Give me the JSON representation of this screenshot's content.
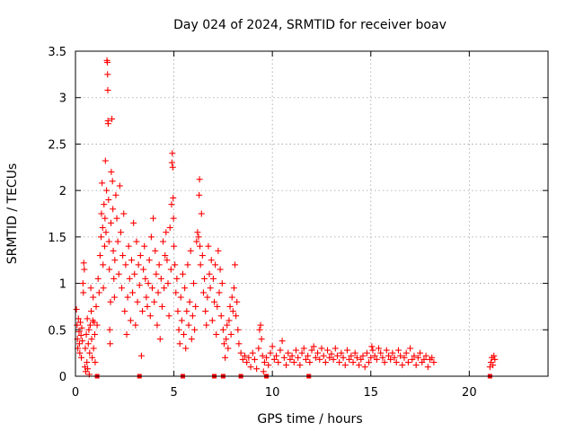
{
  "chart_data": {
    "type": "scatter",
    "title": "Day 024 of 2024, SRMTID for receiver boav",
    "xlabel": "GPS time / hours",
    "ylabel": "SRMTID / TECUs",
    "xlim": [
      0,
      24
    ],
    "ylim": [
      0,
      3.5
    ],
    "xticks": [
      0,
      5,
      10,
      15,
      20
    ],
    "yticks": [
      0,
      0.5,
      1,
      1.5,
      2,
      2.5,
      3,
      3.5
    ],
    "ytick_labels": [
      "0",
      "0.5",
      "1",
      "1.5",
      "2",
      "2.5",
      "3",
      "3.5"
    ],
    "grid": true,
    "marker": "plus",
    "marker_color": "#ff0000",
    "series": [
      {
        "name": "SRMTID",
        "points": [
          [
            0.05,
            0.72
          ],
          [
            0.08,
            0.55
          ],
          [
            0.1,
            0.4
          ],
          [
            0.12,
            0.3
          ],
          [
            0.15,
            0.62
          ],
          [
            0.18,
            0.48
          ],
          [
            0.2,
            0.35
          ],
          [
            0.22,
            0.25
          ],
          [
            0.25,
            0.58
          ],
          [
            0.28,
            0.44
          ],
          [
            0.3,
            0.2
          ],
          [
            0.32,
            0.52
          ],
          [
            0.35,
            0.38
          ],
          [
            0.38,
            1.0
          ],
          [
            0.4,
            0.9
          ],
          [
            0.42,
            1.22
          ],
          [
            0.45,
            1.15
          ],
          [
            0.48,
            0.1
          ],
          [
            0.5,
            0.3
          ],
          [
            0.52,
            0.05
          ],
          [
            0.55,
            0.45
          ],
          [
            0.58,
            0.15
          ],
          [
            0.6,
            0.62
          ],
          [
            0.62,
            0.08
          ],
          [
            0.65,
            0.35
          ],
          [
            0.68,
            0.5
          ],
          [
            0.7,
            0.02
          ],
          [
            0.72,
            0.25
          ],
          [
            0.75,
            0.55
          ],
          [
            0.78,
            0.95
          ],
          [
            0.8,
            0.7
          ],
          [
            0.82,
            0.4
          ],
          [
            0.85,
            0.2
          ],
          [
            0.88,
            0.6
          ],
          [
            0.9,
            0.85
          ],
          [
            0.92,
            0.3
          ],
          [
            0.95,
            0.58
          ],
          [
            0.98,
            0.45
          ],
          [
            1.0,
            0.15
          ],
          [
            1.05,
            0.75
          ],
          [
            1.1,
            0.55
          ],
          [
            1.15,
            1.05
          ],
          [
            1.2,
            0.9
          ],
          [
            1.25,
            1.3
          ],
          [
            1.3,
            1.5
          ],
          [
            1.32,
            1.75
          ],
          [
            1.35,
            2.08
          ],
          [
            1.38,
            1.6
          ],
          [
            1.4,
            1.2
          ],
          [
            1.42,
            0.95
          ],
          [
            1.45,
            1.85
          ],
          [
            1.48,
            1.4
          ],
          [
            1.5,
            1.7
          ],
          [
            1.52,
            2.32
          ],
          [
            1.55,
            1.55
          ],
          [
            1.58,
            2.0
          ],
          [
            1.6,
            3.4
          ],
          [
            1.62,
            3.38
          ],
          [
            1.63,
            3.25
          ],
          [
            1.64,
            3.08
          ],
          [
            1.65,
            2.75
          ],
          [
            1.66,
            2.72
          ],
          [
            1.68,
            1.9
          ],
          [
            1.7,
            1.45
          ],
          [
            1.72,
            1.15
          ],
          [
            1.74,
            0.5
          ],
          [
            1.76,
            0.35
          ],
          [
            1.78,
            0.8
          ],
          [
            1.8,
            1.65
          ],
          [
            1.82,
            2.2
          ],
          [
            1.85,
            2.77
          ],
          [
            1.88,
            2.1
          ],
          [
            1.9,
            1.8
          ],
          [
            1.92,
            1.35
          ],
          [
            1.95,
            1.05
          ],
          [
            1.98,
            0.85
          ],
          [
            2.0,
            1.25
          ],
          [
            2.05,
            1.95
          ],
          [
            2.1,
            1.7
          ],
          [
            2.15,
            1.45
          ],
          [
            2.2,
            1.1
          ],
          [
            2.25,
            2.05
          ],
          [
            2.3,
            1.55
          ],
          [
            2.35,
            0.95
          ],
          [
            2.4,
            1.3
          ],
          [
            2.45,
            1.75
          ],
          [
            2.5,
            0.7
          ],
          [
            2.55,
            1.2
          ],
          [
            2.6,
            0.45
          ],
          [
            2.65,
            0.85
          ],
          [
            2.7,
            1.4
          ],
          [
            2.75,
            1.05
          ],
          [
            2.8,
            0.6
          ],
          [
            2.85,
            1.25
          ],
          [
            2.9,
            0.9
          ],
          [
            2.95,
            1.65
          ],
          [
            3.0,
            1.1
          ],
          [
            3.05,
            0.55
          ],
          [
            3.1,
            1.45
          ],
          [
            3.15,
            0.8
          ],
          [
            3.2,
            1.2
          ],
          [
            3.25,
            0.98
          ],
          [
            3.3,
            1.3
          ],
          [
            3.35,
            0.22
          ],
          [
            3.4,
            0.7
          ],
          [
            3.45,
            1.15
          ],
          [
            3.5,
            1.4
          ],
          [
            3.55,
            1.05
          ],
          [
            3.6,
            0.85
          ],
          [
            3.65,
            0.75
          ],
          [
            3.7,
            1.0
          ],
          [
            3.75,
            1.25
          ],
          [
            3.8,
            0.65
          ],
          [
            3.85,
            1.5
          ],
          [
            3.9,
            0.95
          ],
          [
            3.95,
            1.7
          ],
          [
            4.0,
            0.8
          ],
          [
            4.05,
            1.35
          ],
          [
            4.1,
            1.1
          ],
          [
            4.15,
            0.55
          ],
          [
            4.2,
            0.9
          ],
          [
            4.25,
            1.2
          ],
          [
            4.3,
            0.4
          ],
          [
            4.35,
            1.05
          ],
          [
            4.4,
            0.75
          ],
          [
            4.45,
            1.45
          ],
          [
            4.5,
            0.95
          ],
          [
            4.55,
            1.3
          ],
          [
            4.6,
            1.55
          ],
          [
            4.65,
            1.25
          ],
          [
            4.7,
            1.0
          ],
          [
            4.75,
            0.65
          ],
          [
            4.8,
            1.6
          ],
          [
            4.85,
            1.15
          ],
          [
            4.88,
            1.85
          ],
          [
            4.9,
            2.3
          ],
          [
            4.92,
            2.4
          ],
          [
            4.94,
            2.25
          ],
          [
            4.96,
            1.92
          ],
          [
            4.98,
            1.7
          ],
          [
            5.0,
            1.4
          ],
          [
            5.05,
            1.2
          ],
          [
            5.1,
            0.9
          ],
          [
            5.15,
            1.05
          ],
          [
            5.2,
            0.7
          ],
          [
            5.25,
            0.5
          ],
          [
            5.3,
            0.35
          ],
          [
            5.35,
            0.85
          ],
          [
            5.4,
            0.6
          ],
          [
            5.45,
            1.1
          ],
          [
            5.5,
            0.45
          ],
          [
            5.55,
            0.95
          ],
          [
            5.6,
            0.3
          ],
          [
            5.65,
            0.7
          ],
          [
            5.7,
            1.2
          ],
          [
            5.75,
            0.55
          ],
          [
            5.8,
            0.8
          ],
          [
            5.85,
            1.35
          ],
          [
            5.9,
            0.4
          ],
          [
            5.95,
            0.65
          ],
          [
            6.0,
            1.0
          ],
          [
            6.05,
            0.5
          ],
          [
            6.1,
            0.75
          ],
          [
            6.15,
            1.45
          ],
          [
            6.2,
            1.55
          ],
          [
            6.25,
            1.5
          ],
          [
            6.28,
            1.95
          ],
          [
            6.3,
            2.12
          ],
          [
            6.32,
            1.4
          ],
          [
            6.35,
            1.2
          ],
          [
            6.4,
            1.75
          ],
          [
            6.45,
            1.3
          ],
          [
            6.5,
            0.9
          ],
          [
            6.55,
            1.05
          ],
          [
            6.6,
            0.7
          ],
          [
            6.65,
            0.55
          ],
          [
            6.7,
            0.85
          ],
          [
            6.75,
            1.4
          ],
          [
            6.8,
            1.1
          ],
          [
            6.85,
            0.95
          ],
          [
            6.9,
            1.25
          ],
          [
            6.95,
            0.6
          ],
          [
            7.0,
            1.05
          ],
          [
            7.05,
            0.8
          ],
          [
            7.1,
            1.2
          ],
          [
            7.15,
            0.45
          ],
          [
            7.2,
            0.75
          ],
          [
            7.25,
            1.35
          ],
          [
            7.3,
            0.9
          ],
          [
            7.35,
            1.15
          ],
          [
            7.4,
            0.65
          ],
          [
            7.45,
            1.0
          ],
          [
            7.5,
            0.5
          ],
          [
            7.55,
            0.35
          ],
          [
            7.6,
            0.2
          ],
          [
            7.65,
            0.4
          ],
          [
            7.7,
            0.55
          ],
          [
            7.75,
            0.3
          ],
          [
            7.8,
            0.6
          ],
          [
            7.85,
            0.75
          ],
          [
            7.9,
            0.45
          ],
          [
            7.95,
            0.85
          ],
          [
            8.0,
            0.7
          ],
          [
            8.05,
            0.95
          ],
          [
            8.1,
            1.2
          ],
          [
            8.15,
            0.65
          ],
          [
            8.2,
            0.8
          ],
          [
            8.25,
            0.5
          ],
          [
            8.3,
            0.35
          ],
          [
            8.4,
            0.25
          ],
          [
            8.5,
            0.18
          ],
          [
            8.6,
            0.22
          ],
          [
            8.7,
            0.15
          ],
          [
            8.8,
            0.2
          ],
          [
            8.9,
            0.1
          ],
          [
            9.0,
            0.25
          ],
          [
            9.1,
            0.18
          ],
          [
            9.2,
            0.08
          ],
          [
            9.3,
            0.3
          ],
          [
            9.35,
            0.5
          ],
          [
            9.4,
            0.55
          ],
          [
            9.45,
            0.4
          ],
          [
            9.5,
            0.22
          ],
          [
            9.55,
            0.05
          ],
          [
            9.6,
            0.15
          ],
          [
            9.7,
            0.2
          ],
          [
            9.8,
            0.12
          ],
          [
            9.9,
            0.25
          ],
          [
            10.0,
            0.32
          ],
          [
            10.1,
            0.18
          ],
          [
            10.2,
            0.22
          ],
          [
            10.3,
            0.15
          ],
          [
            10.4,
            0.28
          ],
          [
            10.5,
            0.38
          ],
          [
            10.6,
            0.2
          ],
          [
            10.7,
            0.12
          ],
          [
            10.8,
            0.25
          ],
          [
            10.9,
            0.18
          ],
          [
            11.0,
            0.22
          ],
          [
            11.1,
            0.15
          ],
          [
            11.2,
            0.28
          ],
          [
            11.3,
            0.2
          ],
          [
            11.4,
            0.12
          ],
          [
            11.5,
            0.25
          ],
          [
            11.6,
            0.3
          ],
          [
            11.7,
            0.18
          ],
          [
            11.8,
            0.22
          ],
          [
            11.9,
            0.15
          ],
          [
            12.0,
            0.28
          ],
          [
            12.1,
            0.32
          ],
          [
            12.2,
            0.2
          ],
          [
            12.3,
            0.25
          ],
          [
            12.4,
            0.18
          ],
          [
            12.5,
            0.3
          ],
          [
            12.6,
            0.22
          ],
          [
            12.7,
            0.15
          ],
          [
            12.8,
            0.28
          ],
          [
            12.9,
            0.2
          ],
          [
            13.0,
            0.24
          ],
          [
            13.1,
            0.18
          ],
          [
            13.2,
            0.3
          ],
          [
            13.3,
            0.22
          ],
          [
            13.4,
            0.15
          ],
          [
            13.5,
            0.25
          ],
          [
            13.6,
            0.2
          ],
          [
            13.7,
            0.12
          ],
          [
            13.8,
            0.28
          ],
          [
            13.9,
            0.18
          ],
          [
            14.0,
            0.22
          ],
          [
            14.1,
            0.15
          ],
          [
            14.2,
            0.25
          ],
          [
            14.3,
            0.2
          ],
          [
            14.4,
            0.12
          ],
          [
            14.5,
            0.18
          ],
          [
            14.6,
            0.22
          ],
          [
            14.7,
            0.1
          ],
          [
            14.8,
            0.25
          ],
          [
            14.9,
            0.15
          ],
          [
            15.0,
            0.2
          ],
          [
            15.05,
            0.32
          ],
          [
            15.1,
            0.28
          ],
          [
            15.2,
            0.22
          ],
          [
            15.3,
            0.18
          ],
          [
            15.4,
            0.3
          ],
          [
            15.5,
            0.25
          ],
          [
            15.6,
            0.2
          ],
          [
            15.7,
            0.15
          ],
          [
            15.8,
            0.28
          ],
          [
            15.9,
            0.22
          ],
          [
            16.0,
            0.18
          ],
          [
            16.1,
            0.25
          ],
          [
            16.2,
            0.2
          ],
          [
            16.3,
            0.15
          ],
          [
            16.4,
            0.28
          ],
          [
            16.5,
            0.22
          ],
          [
            16.6,
            0.12
          ],
          [
            16.7,
            0.2
          ],
          [
            16.8,
            0.25
          ],
          [
            16.9,
            0.15
          ],
          [
            17.0,
            0.3
          ],
          [
            17.1,
            0.18
          ],
          [
            17.2,
            0.22
          ],
          [
            17.3,
            0.12
          ],
          [
            17.4,
            0.2
          ],
          [
            17.5,
            0.25
          ],
          [
            17.6,
            0.15
          ],
          [
            17.7,
            0.18
          ],
          [
            17.8,
            0.22
          ],
          [
            17.9,
            0.1
          ],
          [
            18.0,
            0.18
          ],
          [
            18.1,
            0.2
          ],
          [
            18.2,
            0.15
          ],
          [
            21.05,
            0.1
          ],
          [
            21.1,
            0.15
          ],
          [
            21.15,
            0.2
          ],
          [
            21.2,
            0.12
          ],
          [
            21.25,
            0.22
          ],
          [
            21.3,
            0.18
          ]
        ]
      }
    ],
    "zero_markers_x": [
      1.1,
      3.25,
      5.45,
      7.05,
      7.5,
      8.4,
      9.7,
      11.85,
      21.05
    ]
  }
}
